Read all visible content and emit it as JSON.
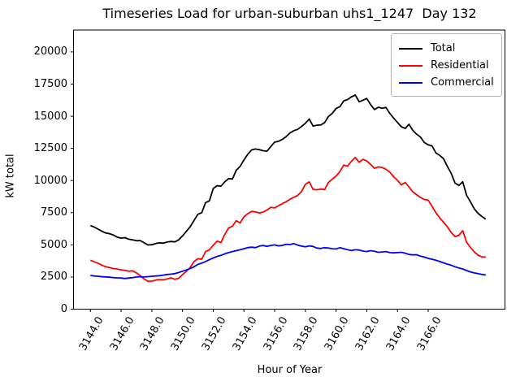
{
  "chart_data": {
    "type": "line",
    "title": "Timeseries Load for urban-suburban uhs1_1247  Day 132",
    "xlabel": "Hour of Year",
    "ylabel": "kW total",
    "grid": false,
    "legend_position": "upper right",
    "x_start": 3144.0,
    "x_step": 0.25,
    "x_end": 3169.75,
    "xlim": [
      3142.9,
      3171.0
    ],
    "ylim": [
      0,
      21700
    ],
    "x_ticks": [
      3144.0,
      3146.0,
      3148.0,
      3150.0,
      3152.0,
      3154.0,
      3156.0,
      3158.0,
      3160.0,
      3162.0,
      3164.0,
      3166.0
    ],
    "x_tick_labels": [
      "3144.0",
      "3146.0",
      "3148.0",
      "3150.0",
      "3152.0",
      "3154.0",
      "3156.0",
      "3158.0",
      "3160.0",
      "3162.0",
      "3164.0",
      "3166.0"
    ],
    "y_ticks": [
      0,
      2500,
      5000,
      7500,
      10000,
      12500,
      15000,
      17500,
      20000
    ],
    "y_tick_labels": [
      "0",
      "2500",
      "5000",
      "7500",
      "10000",
      "12500",
      "15000",
      "17500",
      "20000"
    ],
    "series": [
      {
        "name": "Total",
        "color": "#000000",
        "values": [
          6500,
          6380,
          6220,
          6050,
          5920,
          5870,
          5760,
          5600,
          5520,
          5560,
          5440,
          5380,
          5320,
          5330,
          5160,
          4990,
          5010,
          5100,
          5160,
          5130,
          5220,
          5260,
          5230,
          5380,
          5700,
          6050,
          6420,
          6900,
          7380,
          7500,
          8280,
          8420,
          9380,
          9600,
          9560,
          9900,
          10150,
          10120,
          10800,
          11100,
          11600,
          12050,
          12380,
          12450,
          12400,
          12320,
          12280,
          12650,
          12980,
          13050,
          13200,
          13420,
          13700,
          13880,
          13980,
          14200,
          14450,
          14780,
          14240,
          14300,
          14320,
          14500,
          14980,
          15220,
          15600,
          15750,
          16200,
          16300,
          16500,
          16650,
          16120,
          16250,
          16380,
          15900,
          15520,
          15700,
          15620,
          15680,
          15220,
          14850,
          14520,
          14180,
          14050,
          14380,
          13900,
          13600,
          13380,
          12950,
          12780,
          12700,
          12150,
          11950,
          11700,
          11100,
          10550,
          9800,
          9620,
          9900,
          8850,
          8350,
          7800,
          7450,
          7200,
          7000
        ]
      },
      {
        "name": "Residential",
        "color": "#ff0000",
        "values": [
          3800,
          3680,
          3560,
          3420,
          3300,
          3230,
          3160,
          3120,
          3060,
          3020,
          2950,
          2980,
          2820,
          2600,
          2350,
          2160,
          2180,
          2260,
          2300,
          2280,
          2350,
          2440,
          2320,
          2400,
          2680,
          2950,
          3250,
          3700,
          3920,
          3880,
          4480,
          4620,
          4980,
          5280,
          5180,
          5800,
          6320,
          6450,
          6880,
          6700,
          7180,
          7420,
          7600,
          7560,
          7480,
          7550,
          7700,
          7920,
          7870,
          8050,
          8200,
          8350,
          8550,
          8700,
          8850,
          9150,
          9700,
          9900,
          9320,
          9280,
          9340,
          9300,
          9850,
          10100,
          10350,
          10700,
          11200,
          11120,
          11500,
          11800,
          11420,
          11650,
          11520,
          11250,
          10950,
          11060,
          11020,
          10880,
          10650,
          10300,
          10020,
          9660,
          9850,
          9500,
          9120,
          8900,
          8680,
          8520,
          8480,
          8000,
          7500,
          7100,
          6760,
          6400,
          5950,
          5650,
          5750,
          6100,
          5200,
          4800,
          4450,
          4200,
          4060,
          4050
        ]
      },
      {
        "name": "Commercial",
        "color": "#0000ff",
        "values": [
          2620,
          2580,
          2560,
          2520,
          2510,
          2480,
          2450,
          2430,
          2420,
          2380,
          2420,
          2450,
          2500,
          2520,
          2500,
          2530,
          2560,
          2580,
          2600,
          2650,
          2700,
          2720,
          2760,
          2850,
          2950,
          3050,
          3150,
          3300,
          3480,
          3580,
          3700,
          3850,
          3980,
          4100,
          4180,
          4300,
          4400,
          4480,
          4550,
          4620,
          4700,
          4780,
          4820,
          4780,
          4900,
          4950,
          4880,
          4950,
          5000,
          4920,
          4960,
          5050,
          5020,
          5100,
          4980,
          4900,
          4850,
          4920,
          4880,
          4750,
          4720,
          4780,
          4750,
          4700,
          4680,
          4780,
          4700,
          4620,
          4560,
          4620,
          4600,
          4520,
          4480,
          4550,
          4500,
          4420,
          4450,
          4480,
          4400,
          4380,
          4400,
          4420,
          4350,
          4250,
          4220,
          4230,
          4120,
          4050,
          3950,
          3880,
          3800,
          3700,
          3600,
          3500,
          3420,
          3300,
          3200,
          3120,
          3000,
          2900,
          2820,
          2760,
          2700,
          2660
        ]
      }
    ]
  }
}
